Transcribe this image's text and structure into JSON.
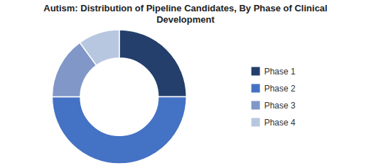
{
  "chart_data": {
    "type": "donut",
    "title": "Autism: Distribution of Pipeline Candidates, By Phase of Clinical\nDevelopment",
    "categories": [
      "Phase 1",
      "Phase 2",
      "Phase 3",
      "Phase 4"
    ],
    "values": [
      25,
      50,
      15,
      10
    ],
    "colors": [
      "#243f6b",
      "#4472c4",
      "#8097c8",
      "#b8c7e0"
    ],
    "legend": "right"
  }
}
